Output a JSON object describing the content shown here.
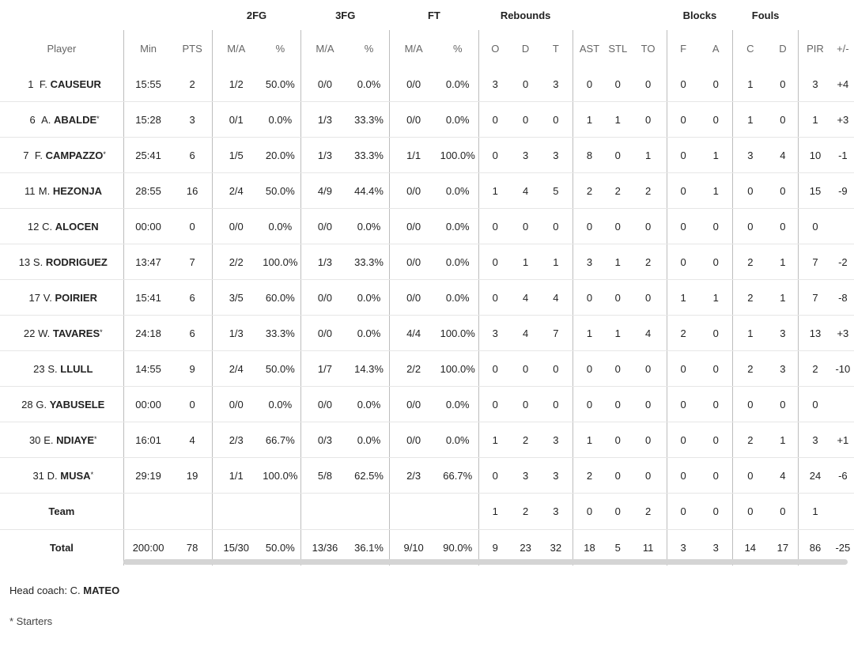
{
  "groups": {
    "twofg": "2FG",
    "threefg": "3FG",
    "ft": "FT",
    "rebounds": "Rebounds",
    "blocks": "Blocks",
    "fouls": "Fouls"
  },
  "columns": [
    "Player",
    "Min",
    "PTS",
    "M/A",
    "%",
    "M/A",
    "%",
    "M/A",
    "%",
    "O",
    "D",
    "T",
    "AST",
    "STL",
    "TO",
    "F",
    "A",
    "C",
    "D",
    "PIR",
    "+/-"
  ],
  "players": [
    {
      "num": "1",
      "initial": "F.",
      "last": "CAUSEUR",
      "starter": false,
      "min": "15:55",
      "pts": "2",
      "fg2_ma": "1/2",
      "fg2_pct": "50.0%",
      "fg3_ma": "0/0",
      "fg3_pct": "0.0%",
      "ft_ma": "0/0",
      "ft_pct": "0.0%",
      "reb_o": "3",
      "reb_d": "0",
      "reb_t": "3",
      "ast": "0",
      "stl": "0",
      "to": "0",
      "blk_f": "0",
      "blk_a": "0",
      "foul_c": "1",
      "foul_d": "0",
      "pir": "3",
      "pm": "+4"
    },
    {
      "num": "6",
      "initial": "A.",
      "last": "ABALDE",
      "starter": true,
      "min": "15:28",
      "pts": "3",
      "fg2_ma": "0/1",
      "fg2_pct": "0.0%",
      "fg3_ma": "1/3",
      "fg3_pct": "33.3%",
      "ft_ma": "0/0",
      "ft_pct": "0.0%",
      "reb_o": "0",
      "reb_d": "0",
      "reb_t": "0",
      "ast": "1",
      "stl": "1",
      "to": "0",
      "blk_f": "0",
      "blk_a": "0",
      "foul_c": "1",
      "foul_d": "0",
      "pir": "1",
      "pm": "+3"
    },
    {
      "num": "7",
      "initial": "F.",
      "last": "CAMPAZZO",
      "starter": true,
      "min": "25:41",
      "pts": "6",
      "fg2_ma": "1/5",
      "fg2_pct": "20.0%",
      "fg3_ma": "1/3",
      "fg3_pct": "33.3%",
      "ft_ma": "1/1",
      "ft_pct": "100.0%",
      "reb_o": "0",
      "reb_d": "3",
      "reb_t": "3",
      "ast": "8",
      "stl": "0",
      "to": "1",
      "blk_f": "0",
      "blk_a": "1",
      "foul_c": "3",
      "foul_d": "4",
      "pir": "10",
      "pm": "-1"
    },
    {
      "num": "11",
      "initial": "M.",
      "last": "HEZONJA",
      "starter": false,
      "min": "28:55",
      "pts": "16",
      "fg2_ma": "2/4",
      "fg2_pct": "50.0%",
      "fg3_ma": "4/9",
      "fg3_pct": "44.4%",
      "ft_ma": "0/0",
      "ft_pct": "0.0%",
      "reb_o": "1",
      "reb_d": "4",
      "reb_t": "5",
      "ast": "2",
      "stl": "2",
      "to": "2",
      "blk_f": "0",
      "blk_a": "1",
      "foul_c": "0",
      "foul_d": "0",
      "pir": "15",
      "pm": "-9"
    },
    {
      "num": "12",
      "initial": "C.",
      "last": "ALOCEN",
      "starter": false,
      "min": "00:00",
      "pts": "0",
      "fg2_ma": "0/0",
      "fg2_pct": "0.0%",
      "fg3_ma": "0/0",
      "fg3_pct": "0.0%",
      "ft_ma": "0/0",
      "ft_pct": "0.0%",
      "reb_o": "0",
      "reb_d": "0",
      "reb_t": "0",
      "ast": "0",
      "stl": "0",
      "to": "0",
      "blk_f": "0",
      "blk_a": "0",
      "foul_c": "0",
      "foul_d": "0",
      "pir": "0",
      "pm": ""
    },
    {
      "num": "13",
      "initial": "S.",
      "last": "RODRIGUEZ",
      "starter": false,
      "min": "13:47",
      "pts": "7",
      "fg2_ma": "2/2",
      "fg2_pct": "100.0%",
      "fg3_ma": "1/3",
      "fg3_pct": "33.3%",
      "ft_ma": "0/0",
      "ft_pct": "0.0%",
      "reb_o": "0",
      "reb_d": "1",
      "reb_t": "1",
      "ast": "3",
      "stl": "1",
      "to": "2",
      "blk_f": "0",
      "blk_a": "0",
      "foul_c": "2",
      "foul_d": "1",
      "pir": "7",
      "pm": "-2"
    },
    {
      "num": "17",
      "initial": "V.",
      "last": "POIRIER",
      "starter": false,
      "min": "15:41",
      "pts": "6",
      "fg2_ma": "3/5",
      "fg2_pct": "60.0%",
      "fg3_ma": "0/0",
      "fg3_pct": "0.0%",
      "ft_ma": "0/0",
      "ft_pct": "0.0%",
      "reb_o": "0",
      "reb_d": "4",
      "reb_t": "4",
      "ast": "0",
      "stl": "0",
      "to": "0",
      "blk_f": "1",
      "blk_a": "1",
      "foul_c": "2",
      "foul_d": "1",
      "pir": "7",
      "pm": "-8"
    },
    {
      "num": "22",
      "initial": "W.",
      "last": "TAVARES",
      "starter": true,
      "min": "24:18",
      "pts": "6",
      "fg2_ma": "1/3",
      "fg2_pct": "33.3%",
      "fg3_ma": "0/0",
      "fg3_pct": "0.0%",
      "ft_ma": "4/4",
      "ft_pct": "100.0%",
      "reb_o": "3",
      "reb_d": "4",
      "reb_t": "7",
      "ast": "1",
      "stl": "1",
      "to": "4",
      "blk_f": "2",
      "blk_a": "0",
      "foul_c": "1",
      "foul_d": "3",
      "pir": "13",
      "pm": "+3"
    },
    {
      "num": "23",
      "initial": "S.",
      "last": "LLULL",
      "starter": false,
      "min": "14:55",
      "pts": "9",
      "fg2_ma": "2/4",
      "fg2_pct": "50.0%",
      "fg3_ma": "1/7",
      "fg3_pct": "14.3%",
      "ft_ma": "2/2",
      "ft_pct": "100.0%",
      "reb_o": "0",
      "reb_d": "0",
      "reb_t": "0",
      "ast": "0",
      "stl": "0",
      "to": "0",
      "blk_f": "0",
      "blk_a": "0",
      "foul_c": "2",
      "foul_d": "3",
      "pir": "2",
      "pm": "-10"
    },
    {
      "num": "28",
      "initial": "G.",
      "last": "YABUSELE",
      "starter": false,
      "min": "00:00",
      "pts": "0",
      "fg2_ma": "0/0",
      "fg2_pct": "0.0%",
      "fg3_ma": "0/0",
      "fg3_pct": "0.0%",
      "ft_ma": "0/0",
      "ft_pct": "0.0%",
      "reb_o": "0",
      "reb_d": "0",
      "reb_t": "0",
      "ast": "0",
      "stl": "0",
      "to": "0",
      "blk_f": "0",
      "blk_a": "0",
      "foul_c": "0",
      "foul_d": "0",
      "pir": "0",
      "pm": ""
    },
    {
      "num": "30",
      "initial": "E.",
      "last": "NDIAYE",
      "starter": true,
      "min": "16:01",
      "pts": "4",
      "fg2_ma": "2/3",
      "fg2_pct": "66.7%",
      "fg3_ma": "0/3",
      "fg3_pct": "0.0%",
      "ft_ma": "0/0",
      "ft_pct": "0.0%",
      "reb_o": "1",
      "reb_d": "2",
      "reb_t": "3",
      "ast": "1",
      "stl": "0",
      "to": "0",
      "blk_f": "0",
      "blk_a": "0",
      "foul_c": "2",
      "foul_d": "1",
      "pir": "3",
      "pm": "+1"
    },
    {
      "num": "31",
      "initial": "D.",
      "last": "MUSA",
      "starter": true,
      "min": "29:19",
      "pts": "19",
      "fg2_ma": "1/1",
      "fg2_pct": "100.0%",
      "fg3_ma": "5/8",
      "fg3_pct": "62.5%",
      "ft_ma": "2/3",
      "ft_pct": "66.7%",
      "reb_o": "0",
      "reb_d": "3",
      "reb_t": "3",
      "ast": "2",
      "stl": "0",
      "to": "0",
      "blk_f": "0",
      "blk_a": "0",
      "foul_c": "0",
      "foul_d": "4",
      "pir": "24",
      "pm": "-6"
    }
  ],
  "starter_mark": "*",
  "team": {
    "label": "Team",
    "min": "",
    "pts": "",
    "fg2_ma": "",
    "fg2_pct": "",
    "fg3_ma": "",
    "fg3_pct": "",
    "ft_ma": "",
    "ft_pct": "",
    "reb_o": "1",
    "reb_d": "2",
    "reb_t": "3",
    "ast": "0",
    "stl": "0",
    "to": "2",
    "blk_f": "0",
    "blk_a": "0",
    "foul_c": "0",
    "foul_d": "0",
    "pir": "1",
    "pm": ""
  },
  "total": {
    "label": "Total",
    "min": "200:00",
    "pts": "78",
    "fg2_ma": "15/30",
    "fg2_pct": "50.0%",
    "fg3_ma": "13/36",
    "fg3_pct": "36.1%",
    "ft_ma": "9/10",
    "ft_pct": "90.0%",
    "reb_o": "9",
    "reb_d": "23",
    "reb_t": "32",
    "ast": "18",
    "stl": "5",
    "to": "11",
    "blk_f": "3",
    "blk_a": "3",
    "foul_c": "14",
    "foul_d": "17",
    "pir": "86",
    "pm": "-25"
  },
  "coach": {
    "prefix": "Head coach: C.",
    "name": "MATEO"
  },
  "footnote": "* Starters"
}
